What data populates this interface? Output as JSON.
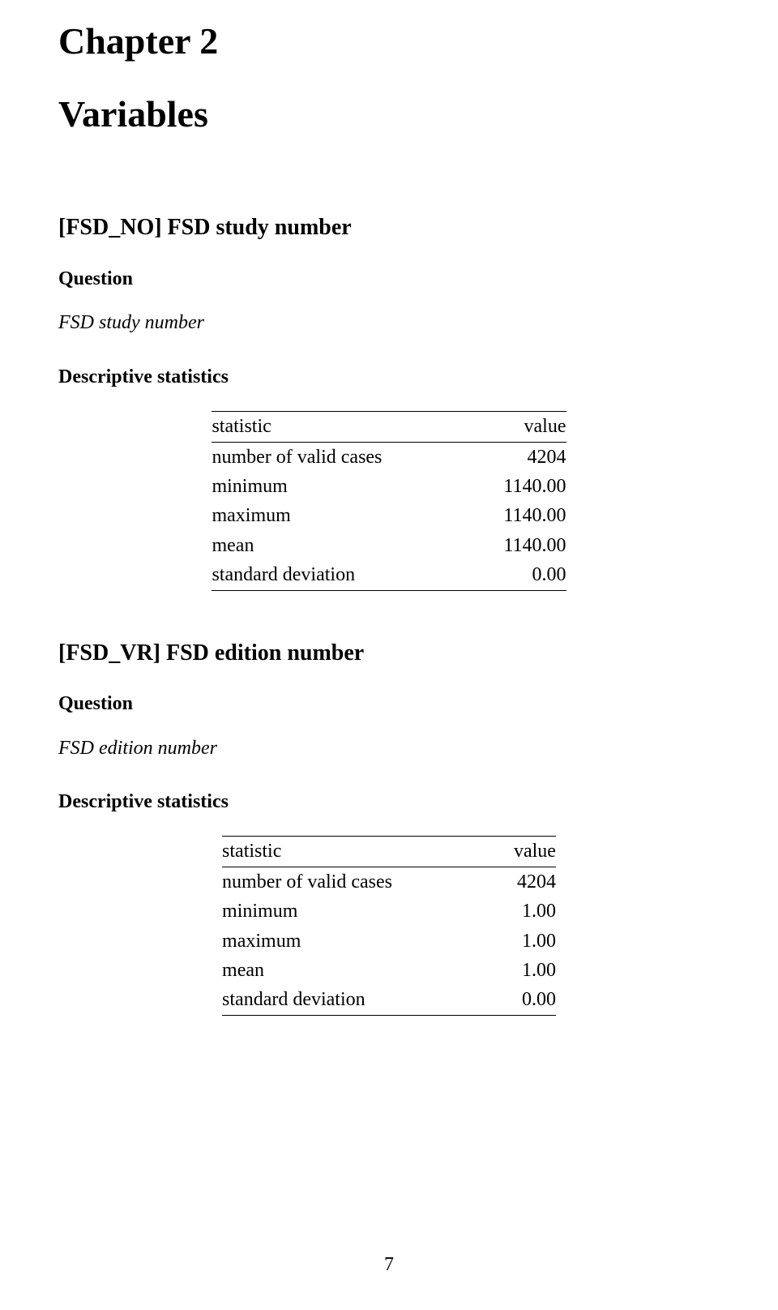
{
  "chapter": {
    "number_label": "Chapter 2",
    "title": "Variables"
  },
  "sections": [
    {
      "heading": "[FSD_NO] FSD study number",
      "question_label": "Question",
      "question_text": "FSD study number",
      "stats_heading": "Descriptive statistics",
      "table": {
        "columns": [
          "statistic",
          "value"
        ],
        "col_align": [
          "left",
          "right"
        ],
        "rows": [
          [
            "number of valid cases",
            "4204"
          ],
          [
            "minimum",
            "1140.00"
          ],
          [
            "maximum",
            "1140.00"
          ],
          [
            "mean",
            "1140.00"
          ],
          [
            "standard deviation",
            "0.00"
          ]
        ],
        "border_color": "#000000",
        "header_border_top": true,
        "header_border_bottom": true,
        "body_border_bottom": true
      }
    },
    {
      "heading": "[FSD_VR] FSD edition number",
      "question_label": "Question",
      "question_text": "FSD edition number",
      "stats_heading": "Descriptive statistics",
      "table": {
        "columns": [
          "statistic",
          "value"
        ],
        "col_align": [
          "left",
          "right"
        ],
        "rows": [
          [
            "number of valid cases",
            "4204"
          ],
          [
            "minimum",
            "1.00"
          ],
          [
            "maximum",
            "1.00"
          ],
          [
            "mean",
            "1.00"
          ],
          [
            "standard deviation",
            "0.00"
          ]
        ],
        "border_color": "#000000",
        "header_border_top": true,
        "header_border_bottom": true,
        "body_border_bottom": true
      }
    }
  ],
  "page_number": "7",
  "typography": {
    "font_family": "Times New Roman",
    "body_fontsize_pt": 18,
    "heading_fontsize_pt": 34,
    "text_color": "#000000",
    "background_color": "#ffffff"
  }
}
